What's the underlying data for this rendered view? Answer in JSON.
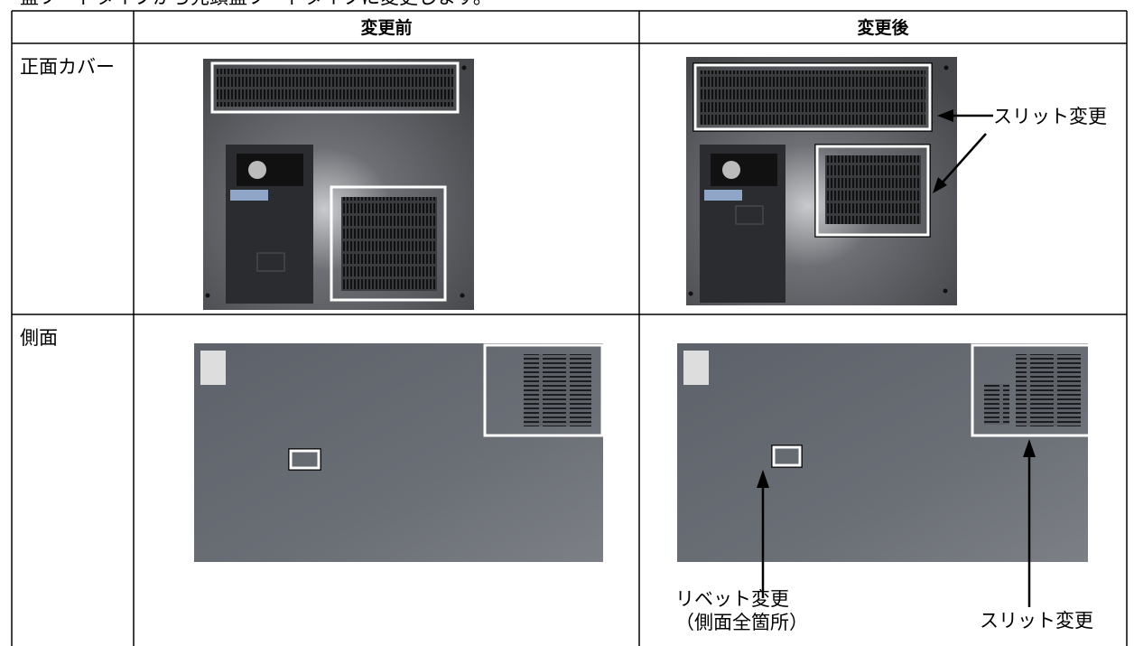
{
  "intro": "盤フードタイプから先頭盤フードタイプに変更します。",
  "table": {
    "headers": [
      "変更前",
      "変更後"
    ],
    "rows": [
      {
        "label": "正面カバー",
        "annotations": [
          "スリット変更"
        ]
      },
      {
        "label": "側面",
        "annotations": [
          "リベット変更",
          "（側面全箇所）",
          "スリット変更"
        ]
      }
    ]
  }
}
